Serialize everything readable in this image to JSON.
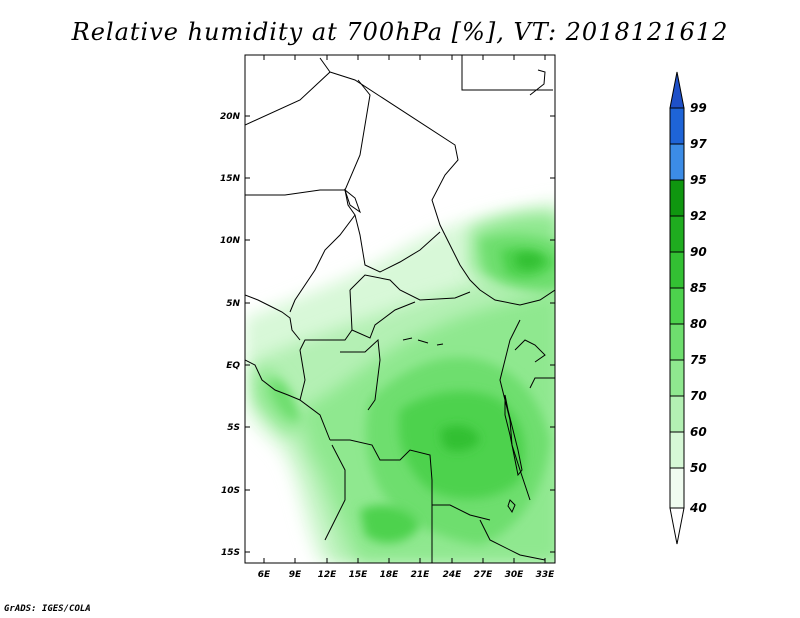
{
  "title": "Relative humidity at 700hPa [%], VT: 2018121612",
  "footer": "GrADS: IGES/COLA",
  "map": {
    "lat_labels": [
      "20N",
      "15N",
      "10N",
      "5N",
      "EQ",
      "5S",
      "10S",
      "15S"
    ],
    "lon_labels": [
      "6E",
      "9E",
      "12E",
      "15E",
      "18E",
      "21E",
      "24E",
      "27E",
      "30E",
      "33E"
    ]
  },
  "colorbar": {
    "labels": [
      "99",
      "97",
      "95",
      "92",
      "90",
      "85",
      "80",
      "75",
      "70",
      "60",
      "50",
      "40"
    ],
    "colors": [
      "#1e64d7",
      "#3c8ce6",
      "#50a0f0",
      "#0f960f",
      "#1fac1f",
      "#33c033",
      "#4dd24d",
      "#6ede6e",
      "#8fe88f",
      "#b3f0b3",
      "#d6f8d6",
      "#f0fcf0"
    ],
    "bottom_color": "#ffffff",
    "top_color": "#1e50c8"
  }
}
